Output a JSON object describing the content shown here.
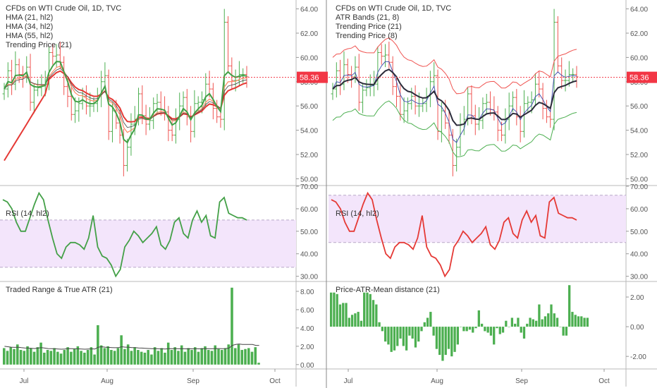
{
  "charts": [
    {
      "legend": [
        "CFDs on WTI Crude Oil, 1D, TVC",
        "HMA (21, hl2)",
        "HMA (34, hl2)",
        "HMA (55, hl2)",
        "Trending Price (21)"
      ],
      "rsi_label": "RSI (14, hl2)",
      "lower_label": "Traded Range & True ATR (21)"
    },
    {
      "legend": [
        "CFDs on WTI Crude Oil, 1D, TVC",
        "ATR Bands (21, 8)",
        "Trending Price (21)",
        "Trending Price (8)"
      ],
      "rsi_label": "RSI (14, hl2)",
      "lower_label": "Price-ATR-Mean distance (21)"
    }
  ],
  "price_badge": "58.36",
  "x_labels": [
    "Jul",
    "Aug",
    "Sep",
    "Oct"
  ],
  "chart_data": [
    {
      "type": "candlestick",
      "title": "CFDs on WTI Crude Oil, 1D, TVC",
      "x_dates": [
        "2019-06-21",
        "2019-06-24",
        "2019-06-25",
        "2019-06-26",
        "2019-06-27",
        "2019-06-28",
        "2019-07-01",
        "2019-07-02",
        "2019-07-03",
        "2019-07-05",
        "2019-07-08",
        "2019-07-09",
        "2019-07-10",
        "2019-07-11",
        "2019-07-12",
        "2019-07-15",
        "2019-07-16",
        "2019-07-17",
        "2019-07-18",
        "2019-07-19",
        "2019-07-22",
        "2019-07-23",
        "2019-07-24",
        "2019-07-25",
        "2019-07-26",
        "2019-07-29",
        "2019-07-30",
        "2019-07-31",
        "2019-08-01",
        "2019-08-02",
        "2019-08-05",
        "2019-08-06",
        "2019-08-07",
        "2019-08-08",
        "2019-08-09",
        "2019-08-12",
        "2019-08-13",
        "2019-08-14",
        "2019-08-15",
        "2019-08-16",
        "2019-08-19",
        "2019-08-20",
        "2019-08-21",
        "2019-08-22",
        "2019-08-23",
        "2019-08-26",
        "2019-08-27",
        "2019-08-28",
        "2019-08-29",
        "2019-08-30",
        "2019-09-03",
        "2019-09-04",
        "2019-09-05",
        "2019-09-06",
        "2019-09-09",
        "2019-09-10",
        "2019-09-11",
        "2019-09-12",
        "2019-09-13",
        "2019-09-16",
        "2019-09-17",
        "2019-09-18",
        "2019-09-19",
        "2019-09-20",
        "2019-09-23",
        "2019-09-24"
      ],
      "close": [
        57.4,
        58.9,
        57.8,
        59.4,
        58.6,
        58.4,
        59.2,
        56.3,
        57.3,
        57.5,
        57.7,
        57.8,
        60.4,
        60.1,
        60.2,
        59.6,
        57.6,
        56.8,
        55.3,
        55.6,
        56.2,
        56.8,
        56.0,
        56.0,
        56.2,
        56.8,
        58.0,
        58.5,
        53.9,
        55.6,
        54.6,
        53.6,
        51.1,
        52.6,
        54.5,
        54.9,
        57.0,
        55.2,
        54.5,
        54.8,
        56.2,
        56.3,
        55.7,
        55.5,
        54.0,
        53.6,
        54.9,
        56.0,
        56.7,
        55.1,
        53.9,
        56.2,
        56.3,
        56.5,
        57.8,
        57.4,
        55.8,
        55.1,
        54.9,
        62.9,
        59.3,
        58.1,
        58.1,
        58.6,
        58.6,
        58.4
      ],
      "yticks": [
        "64.00",
        "62.00",
        "60.00",
        "58.00",
        "56.00",
        "54.00",
        "52.00",
        "50.00"
      ],
      "ylim": [
        49.5,
        64.5
      ],
      "series_left": [
        "HMA (21, hl2)",
        "HMA (34, hl2)",
        "HMA (55, hl2)",
        "Trending Price (21)"
      ],
      "series_right": [
        "ATR Bands (21, 8)",
        "Trending Price (21)",
        "Trending Price (8)"
      ],
      "colors": {
        "up": "#4caf50",
        "down": "#ef5350",
        "hma21": "#43a047",
        "hma34": "#ff8a65",
        "hma55": "#e53935",
        "trend21": "#444444",
        "band": "#ef5350",
        "band_lower": "#4caf50",
        "trend8": "#3949ab",
        "trend21_right": "#2b2b3a",
        "price_line": "#f23645"
      }
    },
    {
      "type": "line",
      "title": "RSI (14, hl2)",
      "values": [
        64,
        63,
        60,
        54,
        50,
        50,
        56,
        62,
        67,
        64,
        55,
        47,
        40,
        38,
        43,
        45,
        45,
        44,
        42,
        47,
        57,
        43,
        39,
        38,
        35,
        30,
        33,
        43,
        46,
        50,
        48,
        45,
        47,
        49,
        52,
        44,
        42,
        46,
        54,
        56,
        49,
        47,
        55,
        59,
        54,
        57,
        48,
        47,
        63,
        65,
        58,
        57,
        56,
        56,
        55
      ],
      "yticks": [
        "70.00",
        "60.00",
        "50.00",
        "40.00",
        "30.00"
      ],
      "ylim": [
        28,
        70
      ],
      "band": [
        34,
        55
      ],
      "colors": {
        "left": "#43a047",
        "right": "#e53935",
        "band": "#f3e5fb"
      }
    },
    {
      "type": "bar",
      "title": "Traded Range & True ATR (21)",
      "values": [
        1.8,
        1.5,
        1.9,
        1.7,
        2.2,
        1.6,
        1.5,
        2.0,
        1.8,
        1.4,
        1.9,
        2.4,
        1.3,
        1.6,
        1.5,
        1.8,
        1.4,
        1.2,
        1.6,
        1.9,
        1.4,
        1.7,
        2.0,
        1.5,
        1.3,
        1.6,
        1.9,
        1.1,
        4.3,
        2.1,
        1.8,
        2.0,
        1.6,
        1.5,
        1.8,
        3.2,
        1.7,
        2.2,
        1.5,
        1.9,
        1.6,
        1.4,
        1.3,
        1.6,
        1.1,
        1.9,
        1.5,
        1.8,
        1.3,
        2.4,
        1.6,
        1.9,
        1.5,
        2.1,
        1.4,
        1.8,
        1.6,
        1.9,
        1.4,
        1.8,
        2.0,
        1.6,
        1.5,
        2.1,
        1.7,
        1.6,
        1.8,
        2.2,
        8.4,
        1.8,
        2.2,
        1.6,
        1.7,
        1.8,
        1.4,
        1.9,
        0.2
      ],
      "atr": [
        2.0,
        1.95,
        1.9,
        1.88,
        1.9,
        1.85,
        1.82,
        1.8,
        1.78,
        1.75,
        1.8,
        1.85,
        1.8,
        1.75,
        1.74,
        1.73,
        1.7,
        1.68,
        1.7,
        1.75,
        1.74,
        1.73,
        1.72,
        1.7,
        1.68,
        1.7,
        1.72,
        1.7,
        1.9,
        1.95,
        1.9,
        1.88,
        1.86,
        1.84,
        1.85,
        1.95,
        1.9,
        1.9,
        1.85,
        1.85,
        1.82,
        1.8,
        1.78,
        1.76,
        1.74,
        1.75,
        1.73,
        1.72,
        1.7,
        1.75,
        1.74,
        1.75,
        1.73,
        1.74,
        1.72,
        1.73,
        1.72,
        1.74,
        1.72,
        1.73,
        1.75,
        1.74,
        1.73,
        1.76,
        1.75,
        1.74,
        1.75,
        1.8,
        2.1,
        2.2,
        2.25,
        2.2,
        2.2,
        2.2,
        2.2,
        2.1,
        2.1
      ],
      "yticks": [
        "8.00",
        "6.00",
        "4.00",
        "2.00",
        "0.00"
      ],
      "ylim": [
        -0.4,
        9.0
      ],
      "colors": {
        "bar": "#4caf50",
        "atr": "#444444"
      }
    },
    {
      "type": "bar",
      "title": "Price-ATR-Mean distance (21)",
      "values": [
        2.3,
        2.3,
        2.2,
        1.5,
        1.6,
        1.6,
        0.6,
        0.8,
        0.9,
        1.0,
        0.4,
        2.3,
        2.3,
        2.2,
        1.8,
        1.5,
        0.3,
        -0.3,
        -1.0,
        -1.2,
        -1.7,
        -1.6,
        -1.3,
        -0.8,
        -1.3,
        -1.6,
        -0.6,
        -0.8,
        -1.4,
        -1.0,
        -0.3,
        0.3,
        0.6,
        1.0,
        -0.6,
        -1.5,
        -1.9,
        -2.3,
        -1.9,
        -1.5,
        -2.0,
        -1.7,
        -1.2,
        0.0,
        -0.3,
        -0.3,
        -0.2,
        -0.4,
        -0.1,
        1.1,
        0.2,
        -0.3,
        -0.4,
        -0.6,
        -1.2,
        -0.1,
        -0.5,
        -0.4,
        0.4,
        0.0,
        0.6,
        0.2,
        0.6,
        -0.4,
        -0.8,
        0.2,
        0.6,
        0.5,
        0.4,
        1.5,
        0.5,
        0.7,
        0.9,
        1.5,
        0.9,
        0.6,
        0.0,
        -0.6,
        -0.6,
        2.8,
        1.0,
        0.8,
        0.7,
        0.7,
        0.6,
        0.6
      ],
      "yticks": [
        "2.00",
        "0.00",
        "-2.00"
      ],
      "ylim": [
        -2.8,
        3.0
      ],
      "colors": {
        "bar": "#4caf50"
      }
    }
  ]
}
